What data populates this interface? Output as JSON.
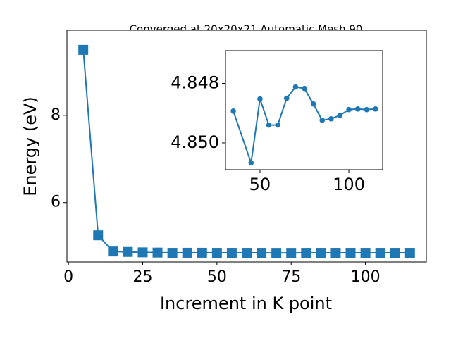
{
  "chart_data": [
    {
      "type": "line",
      "title": "Converged at 20x20x21 Automatic Mesh 90",
      "x_label": "Increment in K point",
      "y_label": "Energy (eV)",
      "x": [
        5,
        10,
        15,
        20,
        25,
        30,
        35,
        40,
        45,
        50,
        55,
        60,
        65,
        70,
        75,
        80,
        85,
        90,
        95,
        100,
        105,
        110,
        115
      ],
      "series": [
        {
          "color": "#1f77b4",
          "marker": "square",
          "values": [
            9.5,
            5.25,
            4.88,
            4.87,
            4.86,
            4.855,
            4.849,
            4.851,
            4.851,
            4.849,
            4.849,
            4.849,
            4.849,
            4.848,
            4.848,
            4.849,
            4.849,
            4.849,
            4.849,
            4.849,
            4.849,
            4.849,
            4.849
          ]
        }
      ],
      "xlim": [
        -0.5,
        120.5
      ],
      "xticks": [
        0,
        25,
        50,
        75,
        100
      ],
      "ylim": [
        4.64,
        9.95
      ],
      "yticks": [
        6,
        8
      ]
    },
    {
      "type": "line",
      "x": [
        35,
        45,
        50,
        55,
        60,
        65,
        70,
        75,
        80,
        85,
        90,
        95,
        100,
        105,
        110,
        115
      ],
      "series": [
        {
          "color": "#1f77b4",
          "marker": "circle",
          "values": [
            4.84893,
            4.85067,
            4.84852,
            4.8494,
            4.8494,
            4.8485,
            4.84812,
            4.84817,
            4.84869,
            4.84924,
            4.84919,
            4.84907,
            4.84888,
            4.84886,
            4.84888,
            4.84886
          ]
        }
      ],
      "xlim": [
        30.6,
        119
      ],
      "xticks": [
        50,
        100
      ],
      "ylim": [
        4.8509,
        4.8469
      ],
      "yticks": [
        4.848,
        {
          "value": 4.85,
          "label": "4.850"
        }
      ]
    }
  ]
}
